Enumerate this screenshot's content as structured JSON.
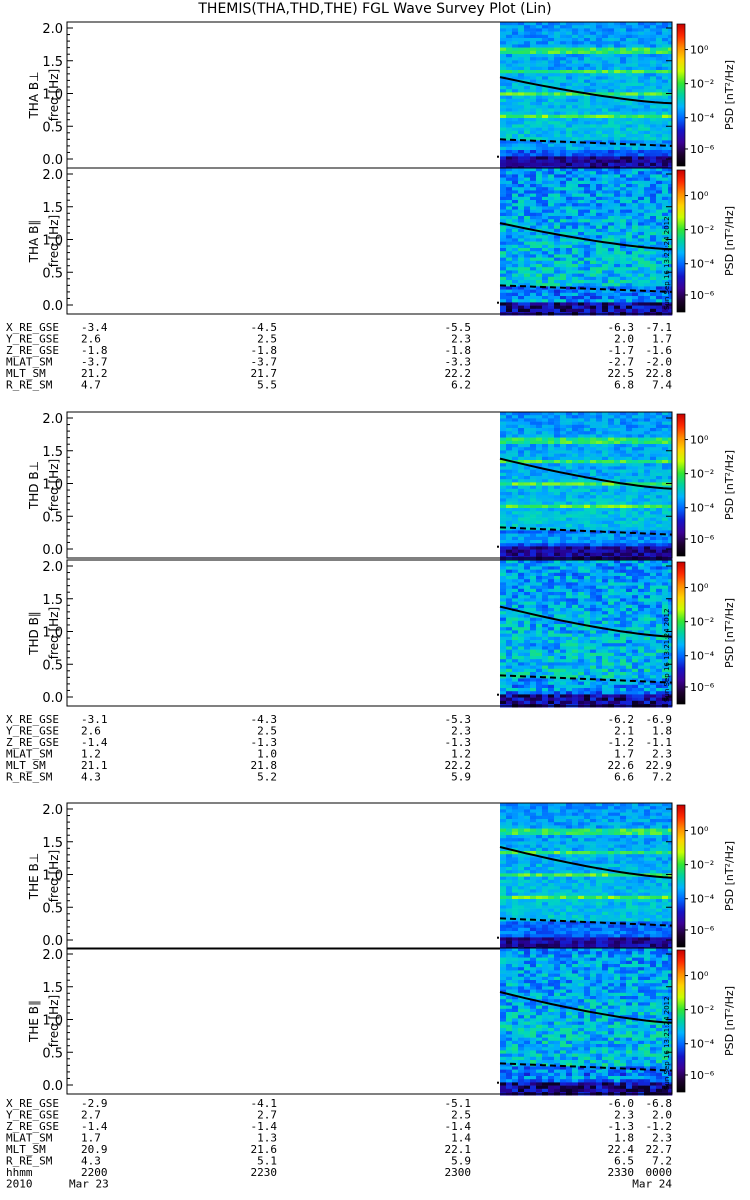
{
  "title": "THEMIS(THA,THD,THE) FGL Wave Survey Plot (Lin)",
  "colorbar": {
    "label": "PSD [nT²/Hz]",
    "ticks": [
      "10⁰",
      "10⁻²",
      "10⁻⁴",
      "10⁻⁶"
    ],
    "colors": [
      "#c80000",
      "#ff2a00",
      "#ff8c00",
      "#ffd200",
      "#c8ff00",
      "#32e632",
      "#00d2a0",
      "#00b4ff",
      "#0064ff",
      "#1414c8",
      "#3c0096",
      "#1e0032",
      "#000000"
    ]
  },
  "stamp": "Sun Sep 16 13:21:24 2012",
  "chart_data": [
    {
      "type": "heatmap",
      "probe": "THA",
      "ylabel": "THA B⊥",
      "freq_label": "freq [Hz]",
      "ylim": [
        0,
        2
      ],
      "yticks": [
        "2.0",
        "1.5",
        "1.0",
        "0.5",
        "0.0"
      ],
      "data_start": "2325",
      "data_end": "0000",
      "curve_hz": [
        1.25,
        0.85
      ],
      "dash_hz": [
        0.3,
        0.2
      ],
      "seed": 11
    },
    {
      "type": "heatmap",
      "probe": "THA",
      "ylabel": "THA B∥",
      "freq_label": "freq [Hz]",
      "ylim": [
        0,
        2
      ],
      "yticks": [
        "2.0",
        "1.5",
        "1.0",
        "0.5",
        "0.0"
      ],
      "data_start": "2325",
      "data_end": "0000",
      "curve_hz": [
        1.25,
        0.85
      ],
      "dash_hz": [
        0.3,
        0.2
      ],
      "seed": 23
    },
    {
      "type": "heatmap",
      "probe": "THD",
      "ylabel": "THD B⊥",
      "freq_label": "freq [Hz]",
      "ylim": [
        0,
        2
      ],
      "yticks": [
        "2.0",
        "1.5",
        "1.0",
        "0.5",
        "0.0"
      ],
      "data_start": "2325",
      "data_end": "0000",
      "curve_hz": [
        1.38,
        0.92
      ],
      "dash_hz": [
        0.33,
        0.22
      ],
      "seed": 37
    },
    {
      "type": "heatmap",
      "probe": "THD",
      "ylabel": "THD B∥",
      "freq_label": "freq [Hz]",
      "ylim": [
        0,
        2
      ],
      "yticks": [
        "2.0",
        "1.5",
        "1.0",
        "0.5",
        "0.0"
      ],
      "data_start": "2325",
      "data_end": "0000",
      "curve_hz": [
        1.38,
        0.92
      ],
      "dash_hz": [
        0.33,
        0.22
      ],
      "seed": 41
    },
    {
      "type": "heatmap",
      "probe": "THE",
      "ylabel": "THE B⊥",
      "freq_label": "freq [Hz]",
      "ylim": [
        0,
        2
      ],
      "yticks": [
        "2.0",
        "1.5",
        "1.0",
        "0.5",
        "0.0"
      ],
      "data_start": "2325",
      "data_end": "0000",
      "curve_hz": [
        1.42,
        0.95
      ],
      "dash_hz": [
        0.33,
        0.22
      ],
      "seed": 53
    },
    {
      "type": "heatmap",
      "probe": "THE",
      "ylabel": "THE B∥",
      "freq_label": "freq [Hz]",
      "ylim": [
        0,
        2
      ],
      "yticks": [
        "2.0",
        "1.5",
        "1.0",
        "0.5",
        "0.0"
      ],
      "data_start": "2325",
      "data_end": "0000",
      "curve_hz": [
        1.42,
        0.95
      ],
      "dash_hz": [
        0.33,
        0.22
      ],
      "seed": 67
    }
  ],
  "ephemeris": [
    {
      "probe": "THA",
      "rows": [
        {
          "label": "X_RE_GSE",
          "values": [
            "-3.4",
            "-4.5",
            "-5.5",
            "-6.3",
            "-7.1"
          ]
        },
        {
          "label": "Y_RE_GSE",
          "values": [
            "2.6",
            "2.5",
            "2.3",
            "2.0",
            "1.7"
          ]
        },
        {
          "label": "Z_RE_GSE",
          "values": [
            "-1.8",
            "-1.8",
            "-1.8",
            "-1.7",
            "-1.6"
          ]
        },
        {
          "label": "MLAT_SM",
          "values": [
            "-3.7",
            "-3.7",
            "-3.3",
            "-2.7",
            "-2.0"
          ]
        },
        {
          "label": "MLT_SM",
          "values": [
            "21.2",
            "21.7",
            "22.2",
            "22.5",
            "22.8"
          ]
        },
        {
          "label": "R_RE_SM",
          "values": [
            "4.7",
            "5.5",
            "6.2",
            "6.8",
            "7.4"
          ]
        }
      ]
    },
    {
      "probe": "THD",
      "rows": [
        {
          "label": "X_RE_GSE",
          "values": [
            "-3.1",
            "-4.3",
            "-5.3",
            "-6.2",
            "-6.9"
          ]
        },
        {
          "label": "Y_RE_GSE",
          "values": [
            "2.6",
            "2.5",
            "2.3",
            "2.1",
            "1.8"
          ]
        },
        {
          "label": "Z_RE_GSE",
          "values": [
            "-1.4",
            "-1.3",
            "-1.3",
            "-1.2",
            "-1.1"
          ]
        },
        {
          "label": "MLAT_SM",
          "values": [
            "1.2",
            "1.0",
            "1.2",
            "1.7",
            "2.3"
          ]
        },
        {
          "label": "MLT_SM",
          "values": [
            "21.1",
            "21.8",
            "22.2",
            "22.6",
            "22.9"
          ]
        },
        {
          "label": "R_RE_SM",
          "values": [
            "4.3",
            "5.2",
            "5.9",
            "6.6",
            "7.2"
          ]
        }
      ]
    },
    {
      "probe": "THE",
      "rows": [
        {
          "label": "X_RE_GSE",
          "values": [
            "-2.9",
            "-4.1",
            "-5.1",
            "-6.0",
            "-6.8"
          ]
        },
        {
          "label": "Y_RE_GSE",
          "values": [
            "2.7",
            "2.7",
            "2.5",
            "2.3",
            "2.0"
          ]
        },
        {
          "label": "Z_RE_GSE",
          "values": [
            "-1.4",
            "-1.4",
            "-1.4",
            "-1.3",
            "-1.2"
          ]
        },
        {
          "label": "MLAT_SM",
          "values": [
            "1.7",
            "1.3",
            "1.4",
            "1.8",
            "2.3"
          ]
        },
        {
          "label": "MLT_SM",
          "values": [
            "20.9",
            "21.6",
            "22.1",
            "22.4",
            "22.7"
          ]
        },
        {
          "label": "R_RE_SM",
          "values": [
            "4.3",
            "5.1",
            "5.9",
            "6.5",
            "7.2"
          ]
        },
        {
          "label": "hhmm",
          "values": [
            "2200",
            "2230",
            "2300",
            "2330",
            "0000"
          ]
        }
      ]
    }
  ],
  "time_axis": {
    "year": "2010",
    "dates": [
      {
        "text": "Mar 23",
        "at": 0
      },
      {
        "text": "Mar 24",
        "at": 4
      }
    ]
  }
}
